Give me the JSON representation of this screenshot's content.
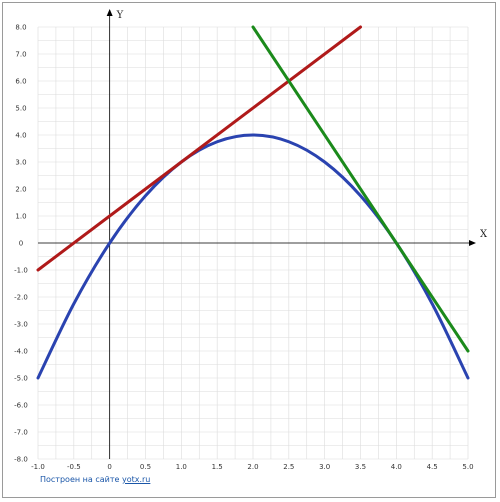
{
  "chart_data": {
    "type": "line",
    "title": "",
    "xlabel": "X",
    "ylabel": "Y",
    "xlim": [
      -1.0,
      5.0
    ],
    "ylim": [
      -8.0,
      8.0
    ],
    "grid": true,
    "x_ticks": [
      -1.0,
      -0.5,
      0,
      0.5,
      1.0,
      1.5,
      2.0,
      2.5,
      3.0,
      3.5,
      4.0,
      4.5,
      5.0
    ],
    "x_tick_labels": [
      "-1.0",
      "-0.5",
      "0",
      "0.5",
      "1.0",
      "1.5",
      "2.0",
      "2.5",
      "3.0",
      "3.5",
      "4.0",
      "4.5",
      "5.0"
    ],
    "y_ticks": [
      8,
      7,
      6,
      5,
      4,
      3,
      2,
      1,
      0,
      -1,
      -2,
      -3,
      -4,
      -5,
      -6,
      -7,
      -8
    ],
    "y_tick_labels": [
      "8.0",
      "7.0",
      "6.0",
      "5.0",
      "4.0",
      "3.0",
      "2.0",
      "1.0",
      "0",
      "-1.0",
      "-2.0",
      "-3.0",
      "-4.0",
      "-5.0",
      "-6.0",
      "-7.0",
      "-8.0"
    ],
    "series": [
      {
        "color": "#2a43b0",
        "x": [
          -1.0,
          -0.5,
          0,
          0.5,
          1.0,
          1.5,
          2.0,
          2.5,
          3.0,
          3.5,
          4.0,
          4.5,
          5.0
        ],
        "values": [
          -5.0,
          -2.25,
          0,
          1.75,
          3.0,
          3.75,
          4.0,
          3.75,
          3.0,
          1.75,
          0,
          -2.25,
          -5.0
        ]
      },
      {
        "color": "#b01a1a",
        "x": [
          -1.0,
          3.5
        ],
        "values": [
          -1.0,
          8.0
        ]
      },
      {
        "color": "#1b8a1b",
        "x": [
          2.0,
          5.0
        ],
        "values": [
          8.0,
          -4.0
        ]
      }
    ]
  },
  "footer": {
    "credit_text": "Построен на сайте",
    "credit_link": "yotx.ru"
  },
  "colors": {
    "grid": "#dcdcdc",
    "axis": "#000000",
    "credit": "#1a56a8"
  }
}
